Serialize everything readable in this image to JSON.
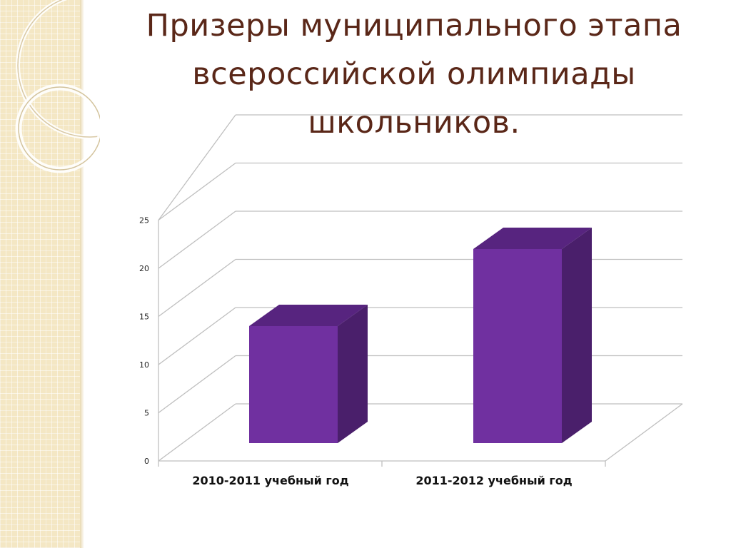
{
  "title_lines": [
    "Призеры муниципального этапа",
    "всероссийской олимпиады",
    "школьников."
  ],
  "chart_data": {
    "type": "bar",
    "categories": [
      "2010-2011 учебный год",
      "2011-2012 учебный год"
    ],
    "values": [
      14,
      22
    ],
    "ylim": [
      0,
      25
    ],
    "yticks": [
      "0",
      "5",
      "10",
      "15",
      "20",
      "25"
    ],
    "grid": true,
    "colors": {
      "bar_front": "#7030a0",
      "bar_top": "#57247f",
      "bar_side": "#4a1f6b",
      "grid": "#bfbfbf"
    }
  }
}
